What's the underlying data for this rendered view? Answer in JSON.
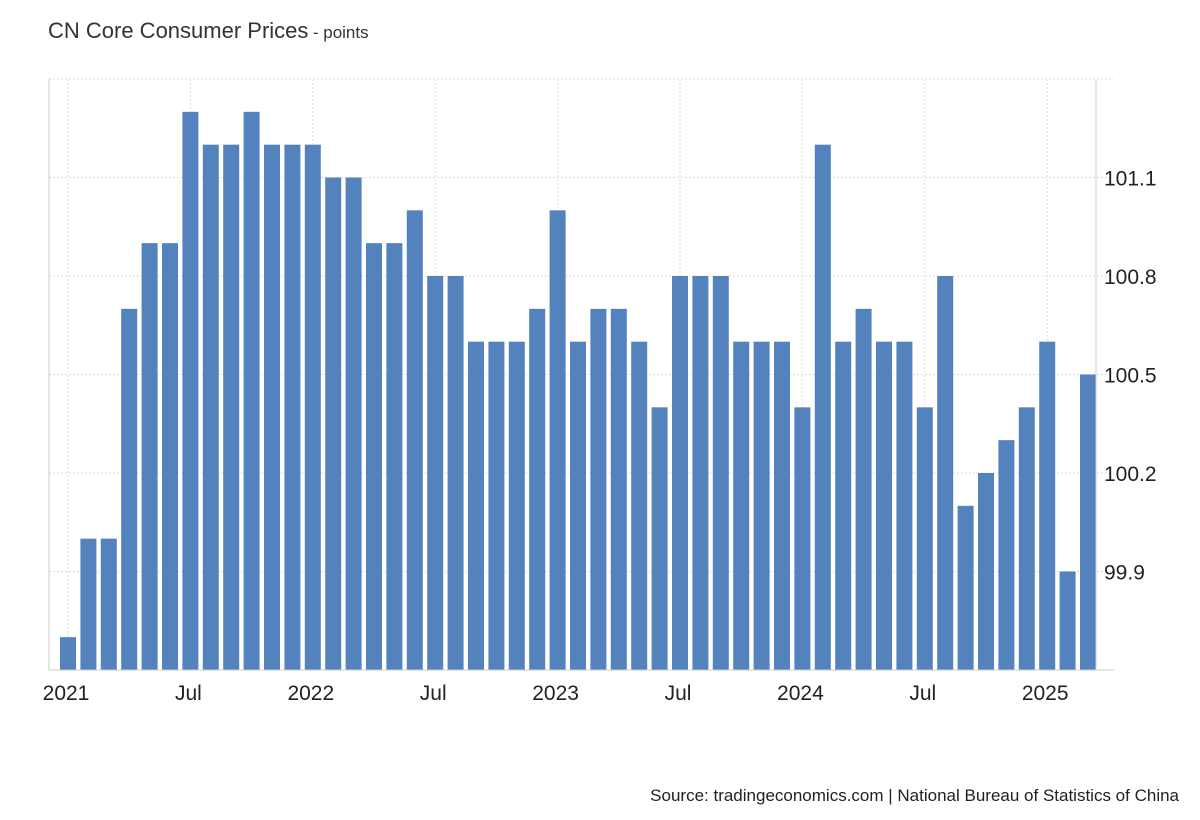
{
  "title": "CN Core Consumer Prices",
  "subtitle": "- points",
  "source": "Source: tradingeconomics.com | National Bureau of Statistics of China",
  "chart_data": {
    "type": "bar",
    "title": "CN Core Consumer Prices",
    "subtitle": "- points",
    "xlabel": "",
    "ylabel": "",
    "bar_color": "#5482bd",
    "grid": true,
    "y_axis_position": "right",
    "ylim": [
      99.6,
      101.4
    ],
    "y_ticks": [
      99.9,
      100.2,
      100.5,
      100.8,
      101.1
    ],
    "y_tick_labels": [
      "99.9",
      "100.2",
      "100.5",
      "100.8",
      "101.1"
    ],
    "x_ticks": [
      {
        "index": 0,
        "label": "2021"
      },
      {
        "index": 6,
        "label": "Jul"
      },
      {
        "index": 12,
        "label": "2022"
      },
      {
        "index": 18,
        "label": "Jul"
      },
      {
        "index": 24,
        "label": "2023"
      },
      {
        "index": 30,
        "label": "Jul"
      },
      {
        "index": 36,
        "label": "2024"
      },
      {
        "index": 42,
        "label": "Jul"
      },
      {
        "index": 48,
        "label": "2025"
      }
    ],
    "categories": [
      "2021-01",
      "2021-02",
      "2021-03",
      "2021-04",
      "2021-05",
      "2021-06",
      "2021-07",
      "2021-08",
      "2021-09",
      "2021-10",
      "2021-11",
      "2021-12",
      "2022-01",
      "2022-02",
      "2022-03",
      "2022-04",
      "2022-05",
      "2022-06",
      "2022-07",
      "2022-08",
      "2022-09",
      "2022-10",
      "2022-11",
      "2022-12",
      "2023-01",
      "2023-02",
      "2023-03",
      "2023-04",
      "2023-05",
      "2023-06",
      "2023-07",
      "2023-08",
      "2023-09",
      "2023-10",
      "2023-11",
      "2023-12",
      "2024-01",
      "2024-02",
      "2024-03",
      "2024-04",
      "2024-05",
      "2024-06",
      "2024-07",
      "2024-08",
      "2024-09",
      "2024-10",
      "2024-11",
      "2024-12",
      "2025-01",
      "2025-02",
      "2025-03"
    ],
    "values": [
      99.7,
      100.0,
      100.0,
      100.7,
      100.9,
      100.9,
      101.3,
      101.2,
      101.2,
      101.3,
      101.2,
      101.2,
      101.2,
      101.1,
      101.1,
      100.9,
      100.9,
      101.0,
      100.8,
      100.8,
      100.6,
      100.6,
      100.6,
      100.7,
      101.0,
      100.6,
      100.7,
      100.7,
      100.6,
      100.4,
      100.8,
      100.8,
      100.8,
      100.6,
      100.6,
      100.6,
      100.4,
      101.2,
      100.6,
      100.7,
      100.6,
      100.6,
      100.4,
      100.8,
      100.1,
      100.2,
      100.3,
      100.4,
      100.6,
      99.9,
      100.5
    ]
  }
}
